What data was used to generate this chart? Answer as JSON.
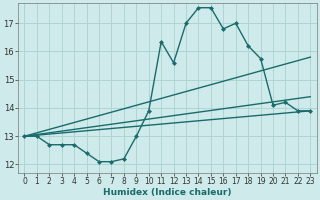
{
  "bg_color": "#ceeaea",
  "grid_color": "#aed4d4",
  "line_color": "#1a6b6b",
  "line_width": 1.0,
  "marker": "D",
  "marker_size": 2.5,
  "xlabel": "Humidex (Indice chaleur)",
  "xlim": [
    -0.5,
    23.5
  ],
  "ylim": [
    11.7,
    17.7
  ],
  "yticks": [
    12,
    13,
    14,
    15,
    16,
    17
  ],
  "xticks": [
    0,
    1,
    2,
    3,
    4,
    5,
    6,
    7,
    8,
    9,
    10,
    11,
    12,
    13,
    14,
    15,
    16,
    17,
    18,
    19,
    20,
    21,
    22,
    23
  ],
  "main_series": {
    "x": [
      0,
      1,
      2,
      3,
      4,
      5,
      6,
      7,
      8,
      9,
      10,
      11,
      12,
      13,
      14,
      15,
      16,
      17,
      18,
      19,
      20,
      21,
      22,
      23
    ],
    "y": [
      13.0,
      13.0,
      12.7,
      12.7,
      12.7,
      12.4,
      12.1,
      12.1,
      12.2,
      13.0,
      13.9,
      16.35,
      15.6,
      17.0,
      17.55,
      17.55,
      16.8,
      17.0,
      16.2,
      15.75,
      14.1,
      14.2,
      13.9,
      13.9
    ]
  },
  "straight_lines": [
    {
      "x": [
        0,
        23
      ],
      "y": [
        13.0,
        15.8
      ]
    },
    {
      "x": [
        0,
        23
      ],
      "y": [
        13.0,
        14.4
      ]
    },
    {
      "x": [
        0,
        23
      ],
      "y": [
        13.0,
        13.9
      ]
    }
  ]
}
